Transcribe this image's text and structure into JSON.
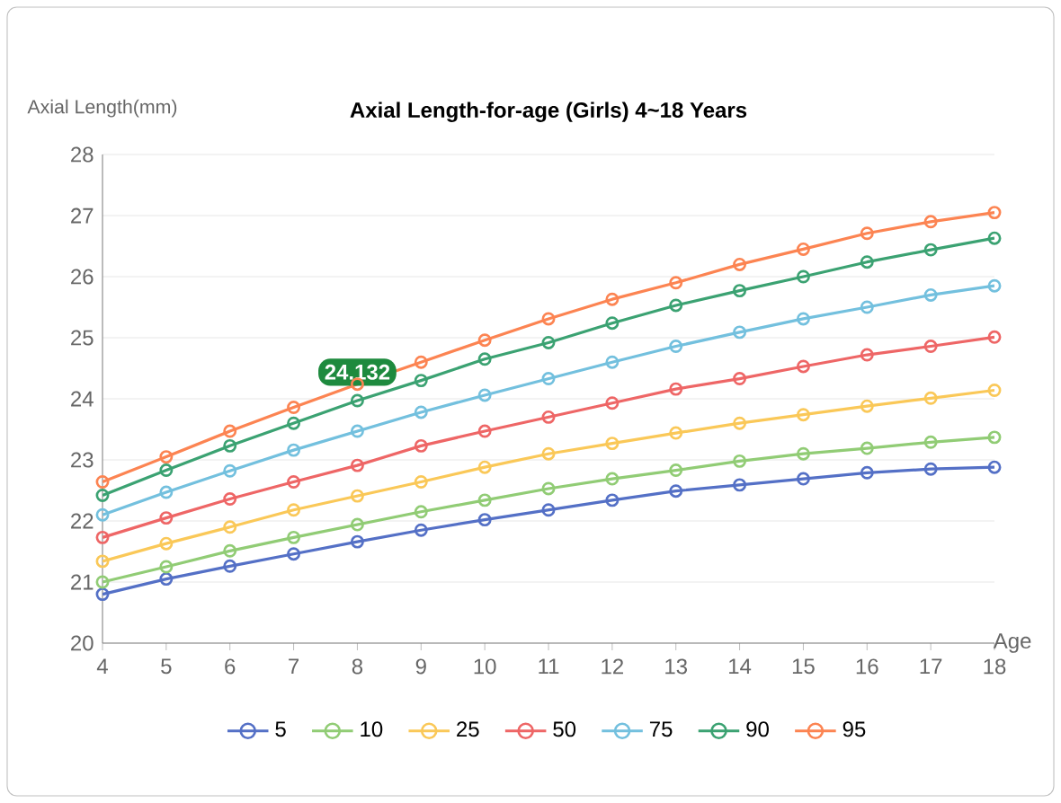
{
  "chart_data": {
    "type": "line",
    "title": "Axial Length-for-age (Girls) 4~18 Years",
    "xlabel": "Age",
    "ylabel": "Axial Length(mm)",
    "x": [
      4,
      5,
      6,
      7,
      8,
      9,
      10,
      11,
      12,
      13,
      14,
      15,
      16,
      17,
      18
    ],
    "series": [
      {
        "name": "5",
        "color": "#5470c6",
        "values": [
          20.8,
          21.05,
          21.26,
          21.46,
          21.66,
          21.85,
          22.02,
          22.18,
          22.34,
          22.49,
          22.59,
          22.69,
          22.79,
          22.85,
          22.88
        ]
      },
      {
        "name": "10",
        "color": "#91cc75",
        "values": [
          21.0,
          21.25,
          21.51,
          21.73,
          21.94,
          22.15,
          22.34,
          22.53,
          22.69,
          22.83,
          22.98,
          23.1,
          23.19,
          23.29,
          23.37
        ]
      },
      {
        "name": "25",
        "color": "#fac858",
        "values": [
          21.34,
          21.63,
          21.9,
          22.18,
          22.41,
          22.64,
          22.88,
          23.1,
          23.27,
          23.44,
          23.6,
          23.74,
          23.88,
          24.01,
          24.14
        ]
      },
      {
        "name": "50",
        "color": "#ee6666",
        "values": [
          21.73,
          22.05,
          22.36,
          22.64,
          22.91,
          23.23,
          23.47,
          23.7,
          23.93,
          24.16,
          24.33,
          24.53,
          24.72,
          24.86,
          25.01
        ]
      },
      {
        "name": "75",
        "color": "#73c0de",
        "values": [
          22.1,
          22.47,
          22.82,
          23.16,
          23.47,
          23.78,
          24.06,
          24.33,
          24.6,
          24.86,
          25.09,
          25.31,
          25.5,
          25.7,
          25.85
        ]
      },
      {
        "name": "90",
        "color": "#3ba272",
        "values": [
          22.42,
          22.83,
          23.23,
          23.6,
          23.97,
          24.3,
          24.65,
          24.92,
          25.24,
          25.53,
          25.77,
          26.0,
          26.24,
          26.44,
          26.63
        ]
      },
      {
        "name": "95",
        "color": "#fc8452",
        "values": [
          22.64,
          23.05,
          23.47,
          23.86,
          24.24,
          24.6,
          24.96,
          25.31,
          25.63,
          25.9,
          26.2,
          26.45,
          26.71,
          26.9,
          27.05
        ]
      }
    ],
    "annotations": [
      {
        "text": "24.132",
        "x": 8,
        "y": 23.97
      }
    ],
    "xlim": [
      4,
      18
    ],
    "xticks": [
      4,
      5,
      6,
      7,
      8,
      9,
      10,
      11,
      12,
      13,
      14,
      15,
      16,
      17,
      18
    ],
    "ylim": [
      20,
      28
    ],
    "yticks": [
      20,
      21,
      22,
      23,
      24,
      25,
      26,
      27,
      28
    ],
    "grid": "y",
    "legend": "bottom",
    "marker": "circle",
    "line_style": "solid"
  }
}
